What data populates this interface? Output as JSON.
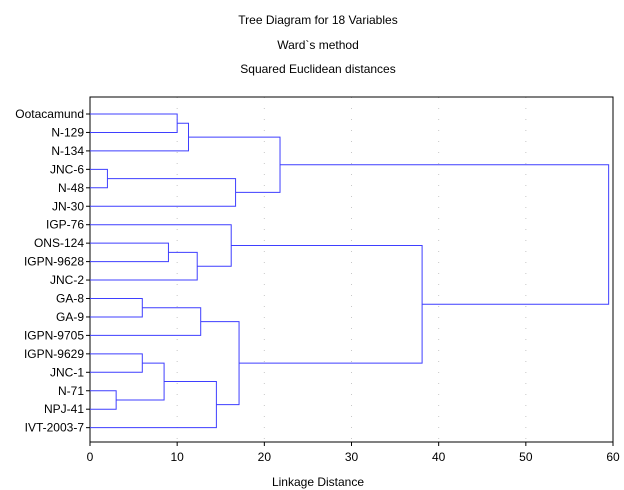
{
  "chart_data": {
    "type": "dendrogram",
    "title": "Tree Diagram for 18 Variables",
    "subtitle_lines": [
      "Ward`s method",
      "Squared Euclidean distances"
    ],
    "xlabel": "Linkage Distance",
    "xlim": [
      0,
      60
    ],
    "xticks": [
      0,
      10,
      20,
      30,
      40,
      50,
      60
    ],
    "grid": true,
    "leaves": [
      "Ootacamund",
      "N-129",
      "N-134",
      "JNC-6",
      "N-48",
      "JN-30",
      "IGP-76",
      "ONS-124",
      "IGPN-9628",
      "JNC-2",
      "GA-8",
      "GA-9",
      "IGPN-9705",
      "IGPN-9629",
      "JNC-1",
      "N-71",
      "NPJ-41",
      "IVT-2003-7"
    ],
    "merges": [
      {
        "a": "JNC-6",
        "b": "N-48",
        "distance": 2
      },
      {
        "a": "N-71",
        "b": "NPJ-41",
        "distance": 3
      },
      {
        "a": "GA-8",
        "b": "GA-9",
        "distance": 6
      },
      {
        "a": "IGPN-9629",
        "b": "JNC-1",
        "distance": 6
      },
      {
        "a": "ONS-124",
        "b": "IGPN-9628",
        "distance": 9
      },
      {
        "a": "Ootacamund",
        "b": "N-129",
        "distance": 10
      },
      {
        "a": "IGPN-9629|JNC-1",
        "b": "N-71|NPJ-41",
        "distance": 8.5
      },
      {
        "a": "Ootacamund|N-129",
        "b": "N-134",
        "distance": 11.3
      },
      {
        "a": "ONS-124|IGPN-9628",
        "b": "JNC-2",
        "distance": 12.3
      },
      {
        "a": "GA-8|GA-9",
        "b": "IGPN-9705",
        "distance": 12.7
      },
      {
        "a": "IGPN-9629|JNC-1|N-71|NPJ-41",
        "b": "IVT-2003-7",
        "distance": 14.5
      },
      {
        "a": "IGP-76",
        "b": "ONS-124|IGPN-9628|JNC-2",
        "distance": 16.2
      },
      {
        "a": "JNC-6|N-48",
        "b": "JN-30",
        "distance": 16.7
      },
      {
        "a": "GA-8|GA-9|IGPN-9705",
        "b": "IGPN-9629|JNC-1|N-71|NPJ-41|IVT-2003-7",
        "distance": 17.1
      },
      {
        "a": "Ootacamund|N-129|N-134",
        "b": "JNC-6|N-48|JN-30",
        "distance": 21.8
      },
      {
        "a": "IGP-76|ONS-124|IGPN-9628|JNC-2",
        "b": "GA-8|GA-9|IGPN-9705|IGPN-9629|JNC-1|N-71|NPJ-41|IVT-2003-7",
        "distance": 38.1
      },
      {
        "a": "Ootacamund|N-129|N-134|JNC-6|N-48|JN-30",
        "b": "IGP-76|ONS-124|IGPN-9628|JNC-2|GA-8|GA-9|IGPN-9705|IGPN-9629|JNC-1|N-71|NPJ-41|IVT-2003-7",
        "distance": 59.5
      }
    ],
    "colors": {
      "links": "#3f3fff",
      "frame": "#000000",
      "grid": "#c8c8c8"
    }
  }
}
